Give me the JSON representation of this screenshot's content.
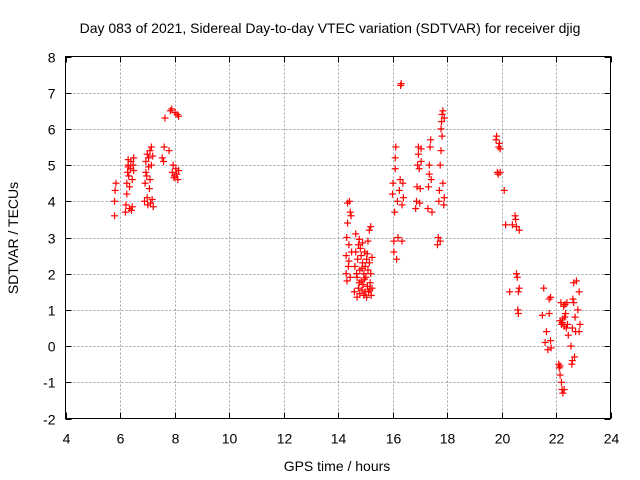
{
  "chart_data": {
    "type": "scatter",
    "title": "Day 083 of 2021, Sidereal Day-to-day VTEC variation (SDTVAR) for receiver djig",
    "xlabel": "GPS time / hours",
    "ylabel": "SDTVAR / TECUs",
    "xlim": [
      4,
      24
    ],
    "ylim": [
      -2,
      8
    ],
    "xticks": [
      4,
      6,
      8,
      10,
      12,
      14,
      16,
      18,
      20,
      22,
      24
    ],
    "yticks": [
      -2,
      -1,
      0,
      1,
      2,
      3,
      4,
      5,
      6,
      7,
      8
    ],
    "grid": true,
    "marker": "+",
    "color": "#ff0000",
    "series": [
      {
        "name": "SDTVAR",
        "points": [
          [
            5.8,
            3.6
          ],
          [
            5.8,
            4.0
          ],
          [
            5.82,
            4.3
          ],
          [
            5.85,
            4.5
          ],
          [
            6.2,
            3.7
          ],
          [
            6.22,
            3.9
          ],
          [
            6.25,
            4.2
          ],
          [
            6.25,
            4.5
          ],
          [
            6.28,
            4.8
          ],
          [
            6.3,
            5.0
          ],
          [
            6.3,
            5.15
          ],
          [
            6.32,
            4.7
          ],
          [
            6.35,
            3.8
          ],
          [
            6.38,
            4.9
          ],
          [
            6.4,
            5.1
          ],
          [
            6.42,
            3.75
          ],
          [
            6.45,
            4.6
          ],
          [
            6.48,
            5.0
          ],
          [
            6.5,
            4.85
          ],
          [
            6.5,
            5.2
          ],
          [
            6.35,
            4.4
          ],
          [
            6.3,
            4.95
          ],
          [
            6.45,
            3.85
          ],
          [
            6.9,
            4.0
          ],
          [
            6.92,
            4.5
          ],
          [
            6.95,
            4.8
          ],
          [
            6.95,
            5.1
          ],
          [
            7.0,
            5.3
          ],
          [
            7.0,
            4.1
          ],
          [
            7.02,
            3.9
          ],
          [
            7.05,
            4.95
          ],
          [
            7.05,
            5.2
          ],
          [
            7.1,
            5.4
          ],
          [
            7.1,
            4.6
          ],
          [
            7.12,
            3.95
          ],
          [
            7.15,
            5.0
          ],
          [
            7.15,
            5.5
          ],
          [
            7.18,
            4.05
          ],
          [
            7.2,
            5.25
          ],
          [
            7.22,
            3.85
          ],
          [
            6.98,
            4.7
          ],
          [
            7.08,
            4.35
          ],
          [
            7.55,
            5.2
          ],
          [
            7.6,
            5.1
          ],
          [
            7.62,
            5.5
          ],
          [
            7.65,
            6.3
          ],
          [
            7.8,
            5.4
          ],
          [
            7.85,
            6.5
          ],
          [
            7.9,
            6.55
          ],
          [
            7.92,
            4.8
          ],
          [
            7.95,
            5.0
          ],
          [
            8.0,
            4.7
          ],
          [
            8.02,
            6.45
          ],
          [
            8.05,
            4.9
          ],
          [
            8.08,
            4.75
          ],
          [
            8.1,
            6.4
          ],
          [
            8.12,
            4.6
          ],
          [
            8.15,
            4.85
          ],
          [
            8.15,
            6.35
          ],
          [
            7.98,
            4.65
          ],
          [
            14.3,
            2.0
          ],
          [
            14.3,
            2.5
          ],
          [
            14.32,
            3.0
          ],
          [
            14.35,
            3.4
          ],
          [
            14.35,
            3.95
          ],
          [
            14.38,
            2.2
          ],
          [
            14.4,
            2.8
          ],
          [
            14.42,
            4.0
          ],
          [
            14.45,
            3.7
          ],
          [
            14.45,
            1.9
          ],
          [
            14.48,
            3.6
          ],
          [
            14.5,
            2.6
          ],
          [
            14.4,
            2.35
          ],
          [
            14.33,
            1.8
          ],
          [
            14.6,
            1.5
          ],
          [
            14.62,
            2.2
          ],
          [
            14.65,
            2.6
          ],
          [
            14.65,
            3.1
          ],
          [
            14.7,
            1.35
          ],
          [
            14.7,
            1.9
          ],
          [
            14.72,
            2.4
          ],
          [
            14.75,
            2.8
          ],
          [
            14.75,
            1.6
          ],
          [
            14.78,
            2.95
          ],
          [
            14.8,
            1.45
          ],
          [
            14.8,
            2.1
          ],
          [
            14.82,
            2.7
          ],
          [
            14.85,
            1.8
          ],
          [
            14.85,
            2.5
          ],
          [
            14.88,
            1.55
          ],
          [
            14.9,
            2.3
          ],
          [
            14.9,
            2.85
          ],
          [
            14.92,
            1.7
          ],
          [
            14.95,
            2.0
          ],
          [
            14.95,
            1.4
          ],
          [
            14.98,
            2.6
          ],
          [
            15.0,
            1.5
          ],
          [
            15.0,
            2.2
          ],
          [
            15.02,
            1.9
          ],
          [
            15.05,
            1.35
          ],
          [
            15.05,
            2.4
          ],
          [
            15.08,
            1.65
          ],
          [
            15.1,
            2.1
          ],
          [
            15.1,
            2.9
          ],
          [
            15.12,
            1.5
          ],
          [
            15.15,
            2.3
          ],
          [
            15.15,
            3.2
          ],
          [
            15.18,
            1.75
          ],
          [
            15.2,
            2.0
          ],
          [
            15.2,
            3.3
          ],
          [
            15.22,
            1.4
          ],
          [
            15.25,
            2.45
          ],
          [
            15.25,
            1.6
          ],
          [
            14.68,
            2.0
          ],
          [
            14.78,
            1.75
          ],
          [
            14.88,
            2.15
          ],
          [
            14.97,
            1.85
          ],
          [
            15.07,
            2.55
          ],
          [
            15.17,
            1.55
          ],
          [
            16.0,
            4.2
          ],
          [
            16.02,
            4.5
          ],
          [
            16.05,
            2.6
          ],
          [
            16.05,
            2.9
          ],
          [
            16.08,
            3.7
          ],
          [
            16.1,
            4.9
          ],
          [
            16.1,
            5.2
          ],
          [
            16.12,
            5.5
          ],
          [
            16.15,
            2.4
          ],
          [
            16.18,
            4.0
          ],
          [
            16.2,
            3.0
          ],
          [
            16.25,
            4.3
          ],
          [
            16.28,
            4.6
          ],
          [
            16.3,
            7.2
          ],
          [
            16.32,
            7.25
          ],
          [
            16.35,
            3.9
          ],
          [
            16.35,
            2.9
          ],
          [
            16.38,
            4.5
          ],
          [
            16.4,
            4.1
          ],
          [
            16.85,
            3.8
          ],
          [
            16.88,
            4.0
          ],
          [
            16.9,
            4.4
          ],
          [
            16.92,
            5.0
          ],
          [
            16.95,
            5.3
          ],
          [
            16.95,
            5.5
          ],
          [
            16.98,
            4.9
          ],
          [
            17.0,
            3.95
          ],
          [
            17.02,
            4.35
          ],
          [
            17.05,
            5.1
          ],
          [
            17.05,
            5.45
          ],
          [
            17.3,
            3.8
          ],
          [
            17.32,
            4.4
          ],
          [
            17.35,
            5.0
          ],
          [
            17.38,
            5.5
          ],
          [
            17.4,
            5.7
          ],
          [
            17.42,
            4.6
          ],
          [
            17.45,
            3.7
          ],
          [
            17.35,
            4.75
          ],
          [
            17.65,
            2.8
          ],
          [
            17.68,
            3.0
          ],
          [
            17.7,
            4.0
          ],
          [
            17.72,
            4.3
          ],
          [
            17.75,
            5.0
          ],
          [
            17.78,
            5.4
          ],
          [
            17.78,
            6.0
          ],
          [
            17.8,
            6.2
          ],
          [
            17.82,
            6.4
          ],
          [
            17.85,
            6.5
          ],
          [
            17.85,
            4.5
          ],
          [
            17.88,
            3.9
          ],
          [
            17.9,
            4.1
          ],
          [
            17.9,
            6.3
          ],
          [
            17.75,
            2.9
          ],
          [
            17.82,
            5.8
          ],
          [
            19.8,
            5.7
          ],
          [
            19.82,
            5.8
          ],
          [
            19.85,
            4.8
          ],
          [
            19.88,
            4.75
          ],
          [
            19.9,
            5.5
          ],
          [
            19.92,
            5.6
          ],
          [
            19.95,
            4.8
          ],
          [
            19.95,
            5.45
          ],
          [
            20.1,
            4.3
          ],
          [
            20.15,
            3.35
          ],
          [
            20.3,
            1.5
          ],
          [
            20.4,
            3.35
          ],
          [
            20.5,
            3.6
          ],
          [
            20.52,
            3.5
          ],
          [
            20.55,
            3.3
          ],
          [
            20.55,
            2.0
          ],
          [
            20.58,
            1.9
          ],
          [
            20.6,
            1.0
          ],
          [
            20.62,
            0.9
          ],
          [
            20.65,
            1.6
          ],
          [
            20.65,
            3.2
          ],
          [
            20.62,
            1.5
          ],
          [
            21.5,
            0.85
          ],
          [
            21.55,
            1.6
          ],
          [
            21.6,
            0.1
          ],
          [
            21.65,
            0.4
          ],
          [
            21.7,
            -0.1
          ],
          [
            21.75,
            0.9
          ],
          [
            21.75,
            1.3
          ],
          [
            21.8,
            0.15
          ],
          [
            21.82,
            -0.05
          ],
          [
            21.8,
            1.35
          ],
          [
            22.1,
            -0.5
          ],
          [
            22.12,
            -0.6
          ],
          [
            22.15,
            -0.8
          ],
          [
            22.15,
            0.7
          ],
          [
            22.18,
            1.2
          ],
          [
            22.2,
            -1.0
          ],
          [
            22.2,
            0.6
          ],
          [
            22.22,
            -1.2
          ],
          [
            22.25,
            -1.3
          ],
          [
            22.25,
            0.75
          ],
          [
            22.28,
            1.1
          ],
          [
            22.3,
            -1.2
          ],
          [
            22.3,
            0.55
          ],
          [
            22.32,
            0.8
          ],
          [
            22.35,
            0.9
          ],
          [
            22.38,
            0.5
          ],
          [
            22.4,
            1.2
          ],
          [
            22.42,
            0.6
          ],
          [
            22.45,
            0.3
          ],
          [
            22.15,
            -0.55
          ],
          [
            22.23,
            0.65
          ],
          [
            22.33,
            1.15
          ],
          [
            22.55,
            0.0
          ],
          [
            22.58,
            -0.5
          ],
          [
            22.6,
            0.5
          ],
          [
            22.62,
            1.3
          ],
          [
            22.65,
            1.75
          ],
          [
            22.65,
            1.2
          ],
          [
            22.68,
            -0.3
          ],
          [
            22.7,
            0.8
          ],
          [
            22.72,
            0.4
          ],
          [
            22.75,
            1.8
          ],
          [
            22.6,
            -0.4
          ],
          [
            22.8,
            1.0
          ],
          [
            22.85,
            0.4
          ],
          [
            22.85,
            1.5
          ],
          [
            22.88,
            0.6
          ]
        ]
      }
    ]
  }
}
